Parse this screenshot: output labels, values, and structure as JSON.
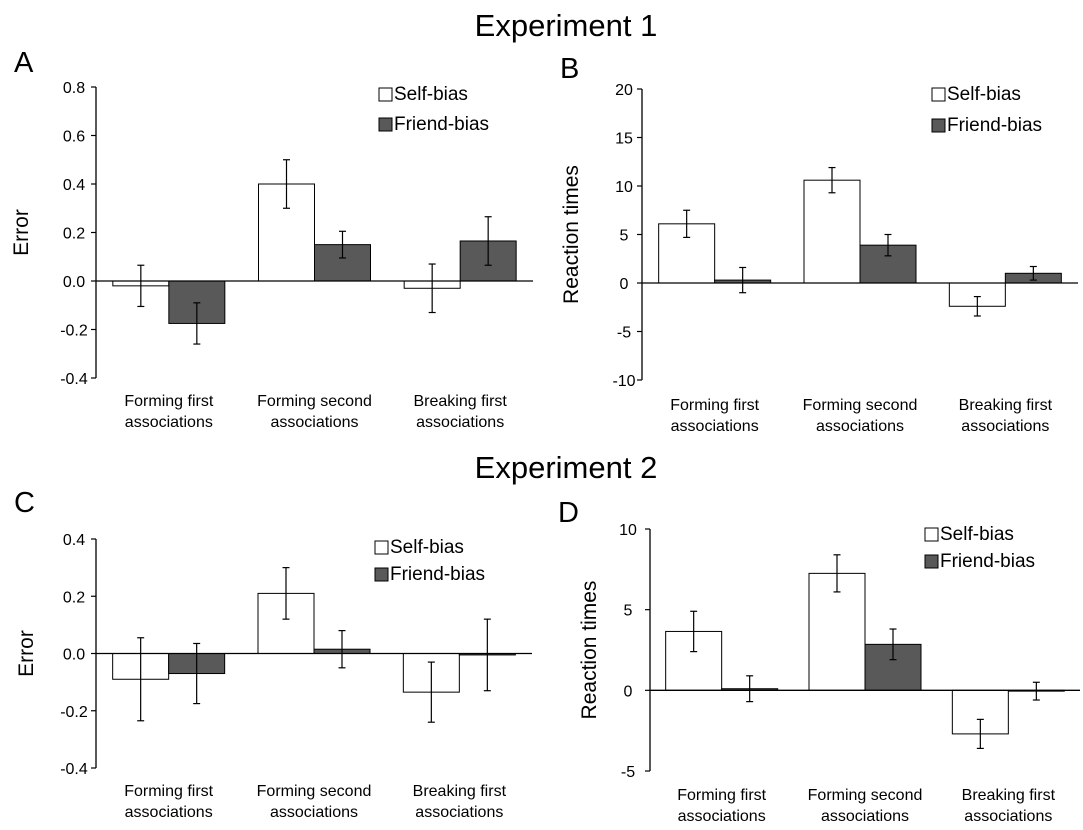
{
  "figure_titles": [
    "Experiment 1",
    "Experiment 2"
  ],
  "colors": {
    "self": "#ffffff",
    "friend": "#595959",
    "axis": "#000000"
  },
  "chart_data": [
    {
      "panel": "A",
      "type": "bar",
      "title": "",
      "xlabel": "",
      "ylabel": "Error",
      "categories": [
        "Forming first\nassociations",
        "Forming second\nassociations",
        "Breaking first\nassociations"
      ],
      "ylim": [
        -0.4,
        0.8
      ],
      "ticks": [
        -0.4,
        -0.2,
        0.0,
        0.2,
        0.4,
        0.6,
        0.8
      ],
      "tick_labels": [
        "-0.4",
        "-0.2",
        "0.0",
        "0.2",
        "0.4",
        "0.6",
        "0.8"
      ],
      "legend_position": "top-right",
      "series": [
        {
          "name": "Self-bias",
          "values": [
            -0.02,
            0.4,
            -0.03
          ],
          "errors": [
            0.085,
            0.1,
            0.1
          ]
        },
        {
          "name": "Friend-bias",
          "values": [
            -0.175,
            0.15,
            0.165
          ],
          "errors": [
            0.085,
            0.055,
            0.1
          ]
        }
      ]
    },
    {
      "panel": "B",
      "type": "bar",
      "title": "",
      "xlabel": "",
      "ylabel": "Reaction times",
      "categories": [
        "Forming first\nassociations",
        "Forming second\nassociations",
        "Breaking first\nassociations"
      ],
      "ylim": [
        -10,
        20
      ],
      "ticks": [
        -10,
        -5,
        0,
        5,
        10,
        15,
        20
      ],
      "tick_labels": [
        "-10",
        "-5",
        "0",
        "5",
        "10",
        "15",
        "20"
      ],
      "legend_position": "top-right",
      "series": [
        {
          "name": "Self-bias",
          "values": [
            6.1,
            10.6,
            -2.4
          ],
          "errors": [
            1.4,
            1.3,
            1.0
          ]
        },
        {
          "name": "Friend-bias",
          "values": [
            0.3,
            3.9,
            1.0
          ],
          "errors": [
            1.3,
            1.1,
            0.7
          ]
        }
      ]
    },
    {
      "panel": "C",
      "type": "bar",
      "title": "",
      "xlabel": "",
      "ylabel": "Error",
      "categories": [
        "Forming first\nassociations",
        "Forming second\nassociations",
        "Breaking first\nassociations"
      ],
      "ylim": [
        -0.4,
        0.4
      ],
      "ticks": [
        -0.4,
        -0.2,
        0.0,
        0.2,
        0.4
      ],
      "tick_labels": [
        "-0.4",
        "-0.2",
        "0.0",
        "0.2",
        "0.4"
      ],
      "legend_position": "top-right",
      "series": [
        {
          "name": "Self-bias",
          "values": [
            -0.09,
            0.21,
            -0.135
          ],
          "errors": [
            0.145,
            0.09,
            0.105
          ]
        },
        {
          "name": "Friend-bias",
          "values": [
            -0.07,
            0.015,
            -0.005
          ],
          "errors": [
            0.105,
            0.065,
            0.125
          ]
        }
      ]
    },
    {
      "panel": "D",
      "type": "bar",
      "title": "",
      "xlabel": "",
      "ylabel": "Reaction times",
      "categories": [
        "Forming first\nassociations",
        "Forming second\nassociations",
        "Breaking first\nassociations"
      ],
      "ylim": [
        -5,
        10
      ],
      "ticks": [
        -5,
        0,
        5,
        10
      ],
      "tick_labels": [
        "-5",
        "0",
        "5",
        "10"
      ],
      "legend_position": "top-right",
      "series": [
        {
          "name": "Self-bias",
          "values": [
            3.65,
            7.25,
            -2.7
          ],
          "errors": [
            1.25,
            1.15,
            0.9
          ]
        },
        {
          "name": "Friend-bias",
          "values": [
            0.1,
            2.85,
            -0.05
          ],
          "errors": [
            0.8,
            0.95,
            0.55
          ]
        }
      ]
    }
  ]
}
